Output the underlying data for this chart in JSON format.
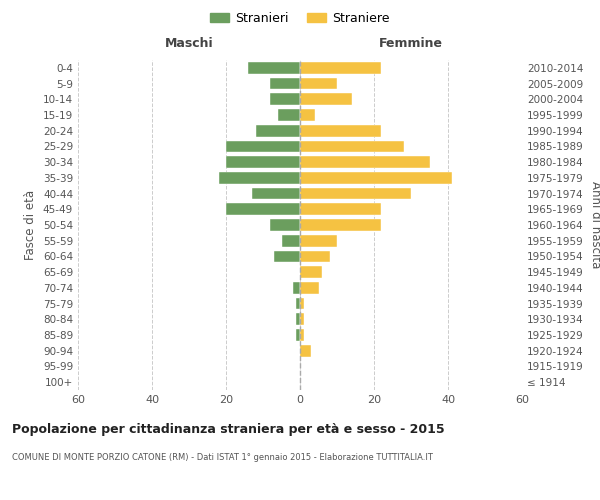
{
  "age_groups": [
    "100+",
    "95-99",
    "90-94",
    "85-89",
    "80-84",
    "75-79",
    "70-74",
    "65-69",
    "60-64",
    "55-59",
    "50-54",
    "45-49",
    "40-44",
    "35-39",
    "30-34",
    "25-29",
    "20-24",
    "15-19",
    "10-14",
    "5-9",
    "0-4"
  ],
  "birth_years": [
    "≤ 1914",
    "1915-1919",
    "1920-1924",
    "1925-1929",
    "1930-1934",
    "1935-1939",
    "1940-1944",
    "1945-1949",
    "1950-1954",
    "1955-1959",
    "1960-1964",
    "1965-1969",
    "1970-1974",
    "1975-1979",
    "1980-1984",
    "1985-1989",
    "1990-1994",
    "1995-1999",
    "2000-2004",
    "2005-2009",
    "2010-2014"
  ],
  "maschi": [
    0,
    0,
    0,
    1,
    1,
    1,
    2,
    0,
    7,
    5,
    8,
    20,
    13,
    22,
    20,
    20,
    12,
    6,
    8,
    8,
    14
  ],
  "femmine": [
    0,
    0,
    3,
    1,
    1,
    1,
    5,
    6,
    8,
    10,
    22,
    22,
    30,
    41,
    35,
    28,
    22,
    4,
    14,
    10,
    22
  ],
  "maschi_color": "#6b9e5e",
  "femmine_color": "#f5c242",
  "background_color": "#ffffff",
  "grid_color": "#cccccc",
  "title": "Popolazione per cittadinanza straniera per età e sesso - 2015",
  "subtitle": "COMUNE DI MONTE PORZIO CATONE (RM) - Dati ISTAT 1° gennaio 2015 - Elaborazione TUTTITALIA.IT",
  "xlabel_left": "Maschi",
  "xlabel_right": "Femmine",
  "ylabel_left": "Fasce di età",
  "ylabel_right": "Anni di nascita",
  "legend_stranieri": "Stranieri",
  "legend_straniere": "Straniere",
  "xlim": 60
}
